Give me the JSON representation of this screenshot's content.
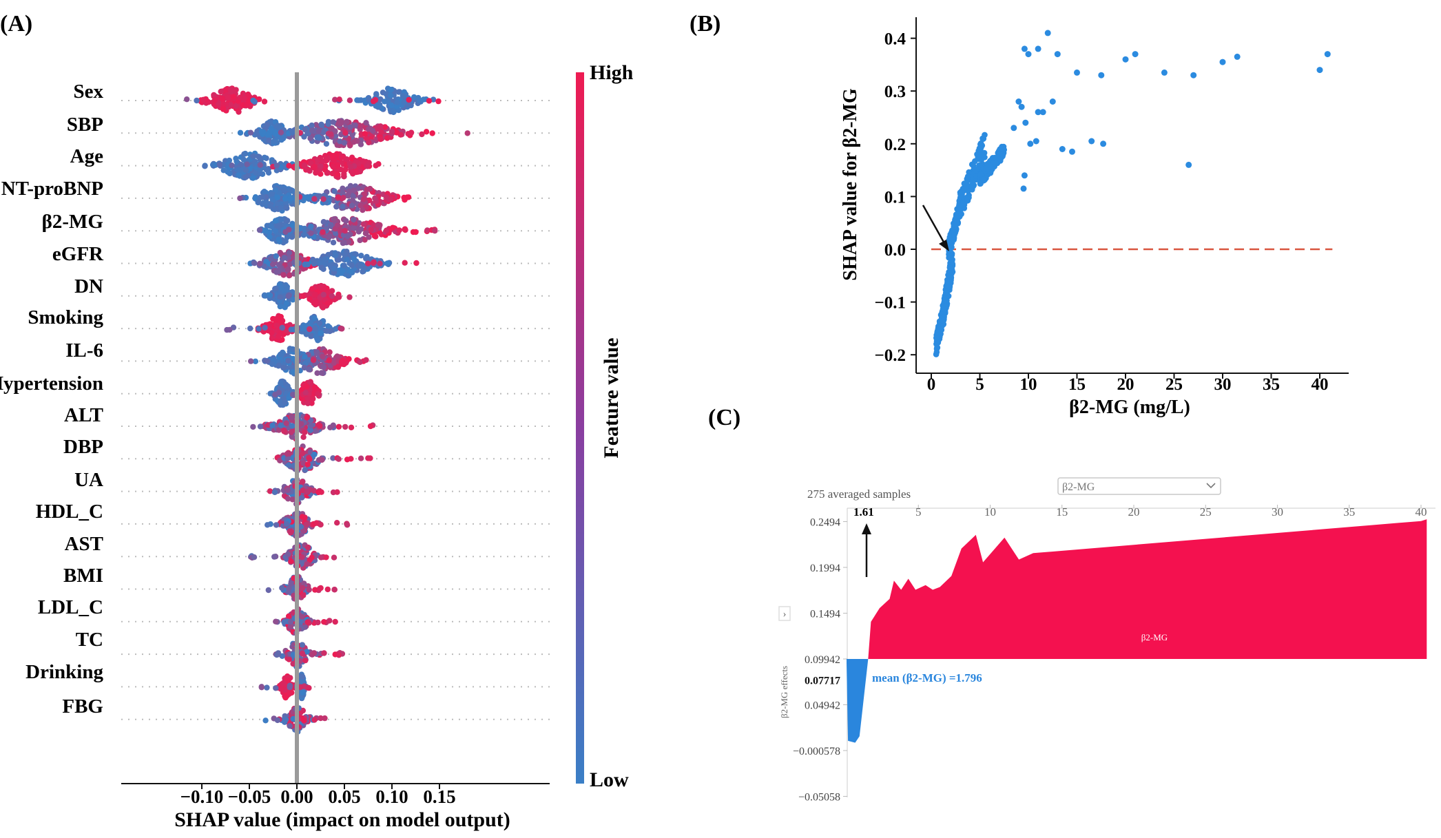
{
  "colors": {
    "high": "#ee1b52",
    "low": "#3a7fc6",
    "scatter_point": "#2b8be0",
    "zero_line": "#d9553f",
    "force_positive": "#f4114f",
    "force_negative": "#2a86dd",
    "mean_text": "#2a86dd",
    "center_line": "#9a9a9a"
  },
  "panel_a": {
    "label": "(A)",
    "features": [
      "Sex",
      "SBP",
      "Age",
      "NT-proBNP",
      "β2-MG",
      "eGFR",
      "DN",
      "Smoking",
      "IL-6",
      "Hypertension",
      "ALT",
      "DBP",
      "UA",
      "HDL_C",
      "AST",
      "BMI",
      "LDL_C",
      "TC",
      "Drinking",
      "FBG"
    ],
    "xlabel": "SHAP value (impact on model output)",
    "xticks": [
      "−0.10",
      "−0.05",
      "0.00",
      "0.05",
      "0.10",
      "0.15"
    ],
    "colorbar": {
      "title": "Feature value",
      "high_label": "High",
      "low_label": "Low"
    }
  },
  "chart_data": [
    {
      "type": "scatter",
      "subtype": "shap-beeswarm",
      "features": [
        "Sex",
        "SBP",
        "Age",
        "NT-proBNP",
        "β2-MG",
        "eGFR",
        "DN",
        "Smoking",
        "IL-6",
        "Hypertension",
        "ALT",
        "DBP",
        "UA",
        "HDL_C",
        "AST",
        "BMI",
        "LDL_C",
        "TC",
        "Drinking",
        "FBG"
      ],
      "xlim": [
        -0.135,
        0.2
      ],
      "xticks": [
        -0.1,
        -0.05,
        0.0,
        0.05,
        0.1,
        0.15
      ],
      "xlabel": "SHAP value (impact on model output)",
      "distributions": [
        {
          "feature": "Sex",
          "x_range": [
            -0.12,
            0.15
          ],
          "clusters": [
            {
              "center": -0.068,
              "spread": 0.05,
              "color": "high"
            },
            {
              "center": 0.1,
              "spread": 0.05,
              "color": "low"
            }
          ]
        },
        {
          "feature": "SBP",
          "x_range": [
            -0.06,
            0.18
          ],
          "clusters": [
            {
              "center": -0.025,
              "spread": 0.03,
              "color": "low"
            },
            {
              "center": 0.05,
              "spread": 0.12,
              "color": "mixed-high"
            }
          ]
        },
        {
          "feature": "Age",
          "x_range": [
            -0.1,
            0.09
          ],
          "clusters": [
            {
              "center": -0.05,
              "spread": 0.07,
              "color": "low"
            },
            {
              "center": 0.04,
              "spread": 0.07,
              "color": "high"
            }
          ]
        },
        {
          "feature": "NT-proBNP",
          "x_range": [
            -0.06,
            0.14
          ],
          "clusters": [
            {
              "center": -0.018,
              "spread": 0.05,
              "color": "low"
            },
            {
              "center": 0.06,
              "spread": 0.08,
              "color": "mixed-high"
            }
          ]
        },
        {
          "feature": "β2-MG",
          "x_range": [
            -0.04,
            0.15
          ],
          "clusters": [
            {
              "center": -0.015,
              "spread": 0.04,
              "color": "low"
            },
            {
              "center": 0.05,
              "spread": 0.1,
              "color": "mixed-high"
            }
          ]
        },
        {
          "feature": "eGFR",
          "x_range": [
            -0.05,
            0.13
          ],
          "clusters": [
            {
              "center": -0.01,
              "spread": 0.05,
              "color": "mixed-high"
            },
            {
              "center": 0.05,
              "spread": 0.07,
              "color": "low"
            }
          ]
        },
        {
          "feature": "DN",
          "x_range": [
            -0.04,
            0.06
          ],
          "clusters": [
            {
              "center": -0.015,
              "spread": 0.025,
              "color": "low"
            },
            {
              "center": 0.025,
              "spread": 0.03,
              "color": "high"
            }
          ]
        },
        {
          "feature": "Smoking",
          "x_range": [
            -0.075,
            0.05
          ],
          "clusters": [
            {
              "center": -0.02,
              "spread": 0.03,
              "color": "high"
            },
            {
              "center": 0.02,
              "spread": 0.03,
              "color": "low"
            }
          ]
        },
        {
          "feature": "IL-6",
          "x_range": [
            -0.05,
            0.08
          ],
          "clusters": [
            {
              "center": -0.005,
              "spread": 0.04,
              "color": "low"
            },
            {
              "center": 0.025,
              "spread": 0.05,
              "color": "mixed-high"
            }
          ]
        },
        {
          "feature": "Hypertension",
          "x_range": [
            -0.04,
            0.04
          ],
          "clusters": [
            {
              "center": -0.015,
              "spread": 0.02,
              "color": "low"
            },
            {
              "center": 0.012,
              "spread": 0.02,
              "color": "high"
            }
          ]
        },
        {
          "feature": "ALT",
          "x_range": [
            -0.06,
            0.08
          ],
          "clusters": [
            {
              "center": 0.0,
              "spread": 0.05,
              "color": "mixed"
            }
          ]
        },
        {
          "feature": "DBP",
          "x_range": [
            -0.03,
            0.08
          ],
          "clusters": [
            {
              "center": 0.005,
              "spread": 0.04,
              "color": "mixed"
            }
          ]
        },
        {
          "feature": "UA",
          "x_range": [
            -0.035,
            0.045
          ],
          "clusters": [
            {
              "center": 0.0,
              "spread": 0.03,
              "color": "mixed"
            }
          ]
        },
        {
          "feature": "HDL_C",
          "x_range": [
            -0.035,
            0.055
          ],
          "clusters": [
            {
              "center": 0.0,
              "spread": 0.03,
              "color": "mixed"
            }
          ]
        },
        {
          "feature": "AST",
          "x_range": [
            -0.05,
            0.055
          ],
          "clusters": [
            {
              "center": 0.005,
              "spread": 0.03,
              "color": "mixed"
            }
          ]
        },
        {
          "feature": "BMI",
          "x_range": [
            -0.035,
            0.04
          ],
          "clusters": [
            {
              "center": 0.0,
              "spread": 0.025,
              "color": "mixed"
            }
          ]
        },
        {
          "feature": "LDL_C",
          "x_range": [
            -0.025,
            0.05
          ],
          "clusters": [
            {
              "center": 0.0,
              "spread": 0.025,
              "color": "mixed"
            }
          ]
        },
        {
          "feature": "TC",
          "x_range": [
            -0.025,
            0.05
          ],
          "clusters": [
            {
              "center": 0.0,
              "spread": 0.025,
              "color": "mixed"
            }
          ]
        },
        {
          "feature": "Drinking",
          "x_range": [
            -0.04,
            0.015
          ],
          "clusters": [
            {
              "center": -0.01,
              "spread": 0.012,
              "color": "high"
            },
            {
              "center": 0.005,
              "spread": 0.006,
              "color": "low"
            }
          ]
        },
        {
          "feature": "FBG",
          "x_range": [
            -0.035,
            0.04
          ],
          "clusters": [
            {
              "center": 0.0,
              "spread": 0.025,
              "color": "mixed"
            }
          ]
        }
      ]
    },
    {
      "type": "scatter",
      "subtype": "shap-dependence",
      "xlabel": "β2-MG (mg/L)",
      "ylabel": "SHAP value for β2-MG",
      "xlim": [
        -1,
        43
      ],
      "ylim": [
        -0.225,
        0.44
      ],
      "xticks": [
        0,
        5,
        10,
        15,
        20,
        25,
        30,
        35,
        40
      ],
      "yticks": [
        -0.2,
        -0.1,
        0.0,
        0.1,
        0.2,
        0.3,
        0.4
      ],
      "reference_line_y": 0.0,
      "dense_region": [
        {
          "x_range": [
            0.5,
            1.5
          ],
          "y_range": [
            -0.2,
            -0.08
          ]
        },
        {
          "x_range": [
            1.2,
            2.2
          ],
          "y_range": [
            -0.15,
            0.0
          ]
        },
        {
          "x_range": [
            1.8,
            3.0
          ],
          "y_range": [
            -0.02,
            0.1
          ]
        },
        {
          "x_range": [
            2.8,
            5.5
          ],
          "y_range": [
            0.05,
            0.22
          ]
        },
        {
          "x_range": [
            5.0,
            7.5
          ],
          "y_range": [
            0.12,
            0.2
          ]
        }
      ],
      "points": [
        {
          "x": 9.0,
          "y": 0.28
        },
        {
          "x": 9.3,
          "y": 0.27
        },
        {
          "x": 8.5,
          "y": 0.23
        },
        {
          "x": 9.7,
          "y": 0.24
        },
        {
          "x": 9.6,
          "y": 0.14
        },
        {
          "x": 9.5,
          "y": 0.115
        },
        {
          "x": 10.2,
          "y": 0.2
        },
        {
          "x": 10.8,
          "y": 0.205
        },
        {
          "x": 11.0,
          "y": 0.26
        },
        {
          "x": 9.6,
          "y": 0.38
        },
        {
          "x": 10.0,
          "y": 0.37
        },
        {
          "x": 11.0,
          "y": 0.38
        },
        {
          "x": 11.5,
          "y": 0.26
        },
        {
          "x": 12.0,
          "y": 0.41
        },
        {
          "x": 12.5,
          "y": 0.28
        },
        {
          "x": 13.0,
          "y": 0.37
        },
        {
          "x": 13.5,
          "y": 0.19
        },
        {
          "x": 14.5,
          "y": 0.185
        },
        {
          "x": 15.0,
          "y": 0.335
        },
        {
          "x": 16.5,
          "y": 0.205
        },
        {
          "x": 17.5,
          "y": 0.33
        },
        {
          "x": 17.7,
          "y": 0.2
        },
        {
          "x": 20.0,
          "y": 0.36
        },
        {
          "x": 21.0,
          "y": 0.37
        },
        {
          "x": 24.0,
          "y": 0.335
        },
        {
          "x": 26.5,
          "y": 0.16
        },
        {
          "x": 27.0,
          "y": 0.33
        },
        {
          "x": 30.0,
          "y": 0.355
        },
        {
          "x": 31.5,
          "y": 0.365
        },
        {
          "x": 40.0,
          "y": 0.34
        },
        {
          "x": 40.8,
          "y": 0.37
        }
      ]
    },
    {
      "type": "area",
      "subtype": "shap-force-plot",
      "top_label": "275 averaged samples",
      "feature_select": "β2-MG",
      "x_marker": "1.61",
      "xticks": [
        5,
        10,
        15,
        20,
        25,
        30,
        35,
        40
      ],
      "xlim": [
        0,
        40
      ],
      "yticks": [
        0.2494,
        0.1994,
        0.1494,
        0.09942,
        0.04942,
        -0.000578,
        -0.05058
      ],
      "ytick_labels": [
        "0.2494",
        "0.1994",
        "0.1494",
        "0.09942",
        "0.04942",
        "−0.000578",
        "−0.05058"
      ],
      "base_value": 0.09942,
      "highlight_value": "0.07717",
      "ylabel": "β2-MG effects",
      "mean_label": "mean (β2-MG) =1.796",
      "area_label": "β2-MG",
      "curve": [
        {
          "x": 0.0,
          "y": 0.095
        },
        {
          "x": 0.1,
          "y": 0.01
        },
        {
          "x": 0.6,
          "y": 0.008
        },
        {
          "x": 0.9,
          "y": 0.015
        },
        {
          "x": 1.5,
          "y": 0.099
        },
        {
          "x": 1.7,
          "y": 0.14
        },
        {
          "x": 2.3,
          "y": 0.155
        },
        {
          "x": 3.0,
          "y": 0.165
        },
        {
          "x": 3.3,
          "y": 0.185
        },
        {
          "x": 3.8,
          "y": 0.175
        },
        {
          "x": 4.3,
          "y": 0.187
        },
        {
          "x": 4.8,
          "y": 0.175
        },
        {
          "x": 5.5,
          "y": 0.18
        },
        {
          "x": 6.0,
          "y": 0.175
        },
        {
          "x": 6.5,
          "y": 0.178
        },
        {
          "x": 7.3,
          "y": 0.19
        },
        {
          "x": 8.0,
          "y": 0.22
        },
        {
          "x": 9.0,
          "y": 0.235
        },
        {
          "x": 9.5,
          "y": 0.205
        },
        {
          "x": 11.0,
          "y": 0.232
        },
        {
          "x": 12.0,
          "y": 0.208
        },
        {
          "x": 13.0,
          "y": 0.215
        },
        {
          "x": 40.0,
          "y": 0.25
        }
      ]
    }
  ],
  "panel_b": {
    "label": "(B)",
    "xlabel": "β2-MG (mg/L)",
    "ylabel": "SHAP value for β2-MG",
    "xtick_labels": [
      "0",
      "5",
      "10",
      "15",
      "20",
      "25",
      "30",
      "35",
      "40"
    ],
    "ytick_labels": [
      "−0.2",
      "−0.1",
      "0.0",
      "0.1",
      "0.2",
      "0.3",
      "0.4"
    ]
  },
  "panel_c": {
    "label": "(C)",
    "top_label": "275 averaged samples",
    "feature_select": "β2-MG",
    "marker_label": "1.61",
    "xtick_labels": [
      "5",
      "10",
      "15",
      "20",
      "25",
      "30",
      "35",
      "40"
    ],
    "ytick_labels": [
      "0.2494",
      "0.1994",
      "0.1494",
      "0.09942",
      "0.04942",
      "−0.000578",
      "−0.05058"
    ],
    "highlight_value": "0.07717",
    "ylabel": "β2-MG effects",
    "mean_label": "mean (β2-MG) =1.796",
    "area_label": "β2-MG",
    "chevron": "›"
  }
}
